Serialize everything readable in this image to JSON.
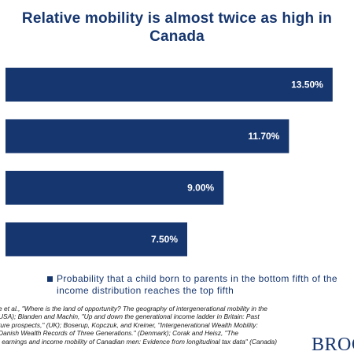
{
  "chart_data": {
    "type": "bar",
    "orientation": "horizontal",
    "title_lines": [
      "Relative mobility is almost twice as high in",
      "Canada"
    ],
    "categories": [
      "",
      "",
      "",
      ""
    ],
    "series": [
      {
        "name": "Probability that a child born to parents in the bottom fifth of the income distribution reaches the top fifth",
        "values": [
          13.5,
          11.7,
          9.0,
          7.5
        ],
        "labels": [
          "13.50%",
          "11.70%",
          "9.00%",
          "7.50%"
        ]
      }
    ],
    "xlim": [
      0,
      15
    ],
    "grid": false,
    "legend_position": "bottom",
    "bar_color": "#16366f",
    "label_color": "#ffffff"
  },
  "legend": {
    "text": "Probability that a child born to parents in the bottom fifth of the income distribution reaches the top fifth"
  },
  "source": {
    "lines": [
      "e et al., \"Where is the land of opportunity? The geography of intergenerational mobility in the",
      "USA); Blanden and Machin, \"Up and down the generational income ladder in Britain: Past",
      "ture prospects,\" (UK); Boserup, Kopczuk, and Kreiner, \"Intergenerational Wealth Mobility:",
      "Danish Wealth Records of Three Generations.\" (Denmark);  Corak and Heisz, \"The",
      "l earnings and income mobility of Canadian men: Evidence from longitudinal tax data\" (Canada)"
    ]
  },
  "logo": {
    "text": "BROC"
  }
}
